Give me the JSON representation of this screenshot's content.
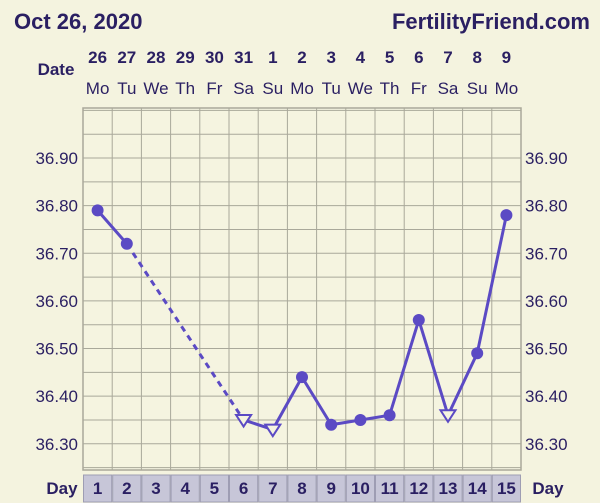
{
  "header": {
    "date": "Oct 26, 2020",
    "site": "FertilityFriend.com"
  },
  "colors": {
    "background": "#f4f3df",
    "plot_background": "#f5f4e0",
    "grid": "#a9a89a",
    "line": "#5b4ac4",
    "text": "#2a1f62",
    "day_cell": "#c7c6d8"
  },
  "chart_data": {
    "type": "line",
    "title": "",
    "xlabel": "Day",
    "ylabel": "",
    "date_label": "Date",
    "day_label": "Day",
    "days": [
      1,
      2,
      3,
      4,
      5,
      6,
      7,
      8,
      9,
      10,
      11,
      12,
      13,
      14,
      15
    ],
    "dates": [
      "26",
      "27",
      "28",
      "29",
      "30",
      "31",
      "1",
      "2",
      "3",
      "4",
      "5",
      "6",
      "7",
      "8",
      "9"
    ],
    "weekdays": [
      "Mo",
      "Tu",
      "We",
      "Th",
      "Fr",
      "Sa",
      "Su",
      "Mo",
      "Tu",
      "We",
      "Th",
      "Fr",
      "Sa",
      "Su",
      "Mo"
    ],
    "yticks": [
      "36.90",
      "36.80",
      "36.70",
      "36.60",
      "36.50",
      "36.40",
      "36.30"
    ],
    "ylim": [
      36.245,
      37.005
    ],
    "temperatures": [
      {
        "day": 1,
        "value": 36.79,
        "marker": "circle"
      },
      {
        "day": 2,
        "value": 36.72,
        "marker": "circle"
      },
      {
        "day": 6,
        "value": 36.35,
        "marker": "open-triangle"
      },
      {
        "day": 7,
        "value": 36.33,
        "marker": "open-triangle"
      },
      {
        "day": 8,
        "value": 36.44,
        "marker": "circle"
      },
      {
        "day": 9,
        "value": 36.34,
        "marker": "circle"
      },
      {
        "day": 10,
        "value": 36.35,
        "marker": "circle"
      },
      {
        "day": 11,
        "value": 36.36,
        "marker": "circle"
      },
      {
        "day": 12,
        "value": 36.56,
        "marker": "circle"
      },
      {
        "day": 13,
        "value": 36.36,
        "marker": "open-triangle"
      },
      {
        "day": 14,
        "value": 36.49,
        "marker": "circle"
      },
      {
        "day": 15,
        "value": 36.78,
        "marker": "circle"
      }
    ],
    "segments": [
      {
        "from": 1,
        "to": 2,
        "style": "solid"
      },
      {
        "from": 2,
        "to": 6,
        "style": "dashed"
      },
      {
        "from": 6,
        "to": 7,
        "style": "solid"
      },
      {
        "from": 7,
        "to": 8,
        "style": "solid"
      },
      {
        "from": 8,
        "to": 9,
        "style": "solid"
      },
      {
        "from": 9,
        "to": 10,
        "style": "solid"
      },
      {
        "from": 10,
        "to": 11,
        "style": "solid"
      },
      {
        "from": 11,
        "to": 12,
        "style": "solid"
      },
      {
        "from": 12,
        "to": 13,
        "style": "solid"
      },
      {
        "from": 13,
        "to": 14,
        "style": "solid"
      },
      {
        "from": 14,
        "to": 15,
        "style": "solid"
      }
    ]
  }
}
